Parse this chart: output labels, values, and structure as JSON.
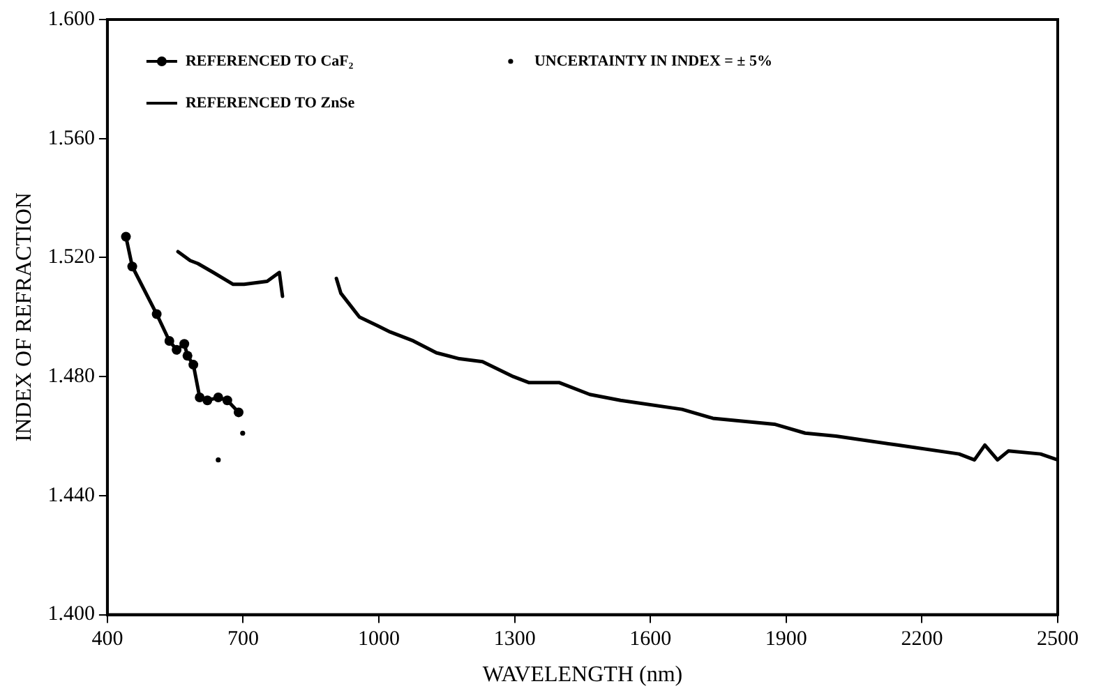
{
  "chart_data": {
    "type": "line",
    "xlabel": "WAVELENGTH (nm)",
    "ylabel": "INDEX OF REFRACTION",
    "xlim": [
      400,
      2500
    ],
    "xticks": [
      400,
      700,
      1000,
      1300,
      1600,
      1900,
      2200,
      2500
    ],
    "ylim": [
      1.4,
      1.6
    ],
    "yticks": [
      {
        "value": 1.4,
        "label": "1.400"
      },
      {
        "value": 1.44,
        "label": "1.440"
      },
      {
        "value": 1.48,
        "label": "1.480"
      },
      {
        "value": 1.52,
        "label": "1.520"
      },
      {
        "value": 1.56,
        "label": "1.560"
      },
      {
        "value": 1.6,
        "label": "1.600"
      }
    ],
    "grid": false,
    "legend": "top left",
    "series": [
      {
        "name": "REFERENCED TO CaF₂",
        "color": "#000000",
        "marker": "circle",
        "x": [
          441,
          455,
          509,
          537,
          553,
          570,
          577,
          590,
          604,
          621,
          645,
          665,
          690
        ],
        "values": [
          1.527,
          1.517,
          1.501,
          1.492,
          1.489,
          1.491,
          1.487,
          1.484,
          1.473,
          1.472,
          1.473,
          1.472,
          1.468
        ]
      },
      {
        "name": "REFERENCED TO ZnSe",
        "color": "#000000",
        "marker": "none",
        "x": [
          556,
          583,
          600,
          634,
          678,
          702,
          753,
          780,
          787,
          850,
          906,
          916,
          957,
          998,
          1025,
          1076,
          1127,
          1178,
          1229,
          1297,
          1331,
          1398,
          1466,
          1534,
          1670,
          1738,
          1874,
          1942,
          2010,
          2146,
          2282,
          2316,
          2339,
          2367,
          2391,
          2462,
          2500
        ],
        "values": [
          1.522,
          1.519,
          1.518,
          1.515,
          1.511,
          1.511,
          1.512,
          1.515,
          1.507,
          null,
          1.513,
          1.508,
          1.5,
          1.497,
          1.495,
          1.492,
          1.488,
          1.486,
          1.485,
          1.48,
          1.478,
          1.478,
          1.474,
          1.472,
          1.469,
          1.466,
          1.464,
          1.461,
          1.46,
          1.457,
          1.454,
          1.452,
          1.457,
          1.452,
          1.455,
          1.454,
          1.452
        ]
      },
      {
        "name": "UNCERTAINTY IN INDEX = ± 5%",
        "type": "scatter",
        "color": "#000000",
        "marker": "circle",
        "x": [
          699,
          645
        ],
        "values": [
          1.461,
          1.452
        ]
      }
    ]
  }
}
